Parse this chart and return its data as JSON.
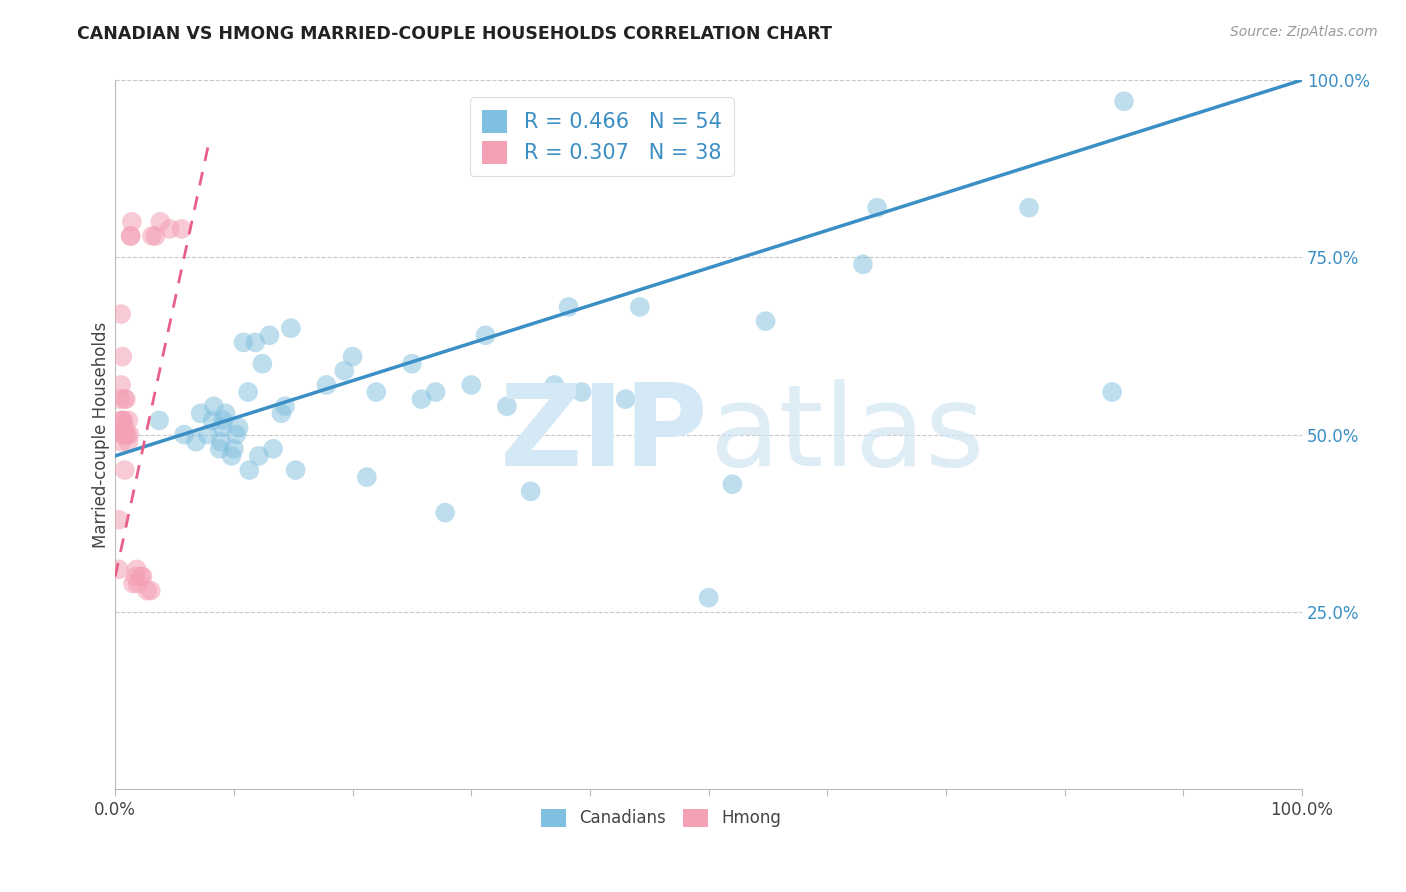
{
  "title": "CANADIAN VS HMONG MARRIED-COUPLE HOUSEHOLDS CORRELATION CHART",
  "source": "Source: ZipAtlas.com",
  "ylabel": "Married-couple Households",
  "xlim": [
    0,
    1
  ],
  "ylim": [
    0,
    1
  ],
  "canadian_R": 0.466,
  "canadian_N": 54,
  "hmong_R": 0.307,
  "hmong_N": 38,
  "canadian_color": "#7fbfdf",
  "hmong_color": "#f4a0b5",
  "canadian_line_color": "#3b8fc4",
  "hmong_line_color": "#e8608a",
  "background_color": "#ffffff",
  "grid_color": "#c8c8c8",
  "canadian_line_x0": 0.0,
  "canadian_line_y0": 0.47,
  "canadian_line_x1": 1.0,
  "canadian_line_y1": 1.0,
  "hmong_line_x0": 0.0,
  "hmong_line_y0": 0.3,
  "hmong_line_x1": 0.08,
  "hmong_line_y1": 0.92,
  "canadian_points_x": [
    0.037,
    0.058,
    0.068,
    0.072,
    0.078,
    0.082,
    0.083,
    0.088,
    0.089,
    0.09,
    0.091,
    0.093,
    0.098,
    0.1,
    0.102,
    0.104,
    0.108,
    0.112,
    0.113,
    0.118,
    0.121,
    0.124,
    0.13,
    0.133,
    0.14,
    0.143,
    0.148,
    0.152,
    0.178,
    0.193,
    0.2,
    0.212,
    0.22,
    0.25,
    0.258,
    0.27,
    0.278,
    0.3,
    0.312,
    0.33,
    0.35,
    0.37,
    0.382,
    0.393,
    0.43,
    0.442,
    0.5,
    0.52,
    0.548,
    0.63,
    0.642,
    0.77,
    0.84,
    0.85
  ],
  "canadian_points_y": [
    0.52,
    0.5,
    0.49,
    0.53,
    0.5,
    0.52,
    0.54,
    0.48,
    0.49,
    0.51,
    0.52,
    0.53,
    0.47,
    0.48,
    0.5,
    0.51,
    0.63,
    0.56,
    0.45,
    0.63,
    0.47,
    0.6,
    0.64,
    0.48,
    0.53,
    0.54,
    0.65,
    0.45,
    0.57,
    0.59,
    0.61,
    0.44,
    0.56,
    0.6,
    0.55,
    0.56,
    0.39,
    0.57,
    0.64,
    0.54,
    0.42,
    0.57,
    0.68,
    0.56,
    0.55,
    0.68,
    0.27,
    0.43,
    0.66,
    0.74,
    0.82,
    0.82,
    0.56,
    0.97
  ],
  "hmong_points_x": [
    0.003,
    0.003,
    0.004,
    0.004,
    0.005,
    0.005,
    0.005,
    0.005,
    0.006,
    0.006,
    0.006,
    0.007,
    0.007,
    0.008,
    0.008,
    0.008,
    0.009,
    0.009,
    0.01,
    0.011,
    0.011,
    0.012,
    0.013,
    0.013,
    0.014,
    0.015,
    0.017,
    0.018,
    0.019,
    0.022,
    0.023,
    0.027,
    0.03,
    0.031,
    0.034,
    0.038,
    0.046,
    0.056
  ],
  "hmong_points_y": [
    0.31,
    0.38,
    0.51,
    0.55,
    0.49,
    0.52,
    0.57,
    0.67,
    0.5,
    0.52,
    0.61,
    0.5,
    0.52,
    0.45,
    0.51,
    0.55,
    0.5,
    0.55,
    0.5,
    0.49,
    0.52,
    0.5,
    0.78,
    0.78,
    0.8,
    0.29,
    0.3,
    0.31,
    0.29,
    0.3,
    0.3,
    0.28,
    0.28,
    0.78,
    0.78,
    0.8,
    0.79,
    0.79
  ],
  "canadians_label": "Canadians",
  "hmong_label": "Hmong"
}
